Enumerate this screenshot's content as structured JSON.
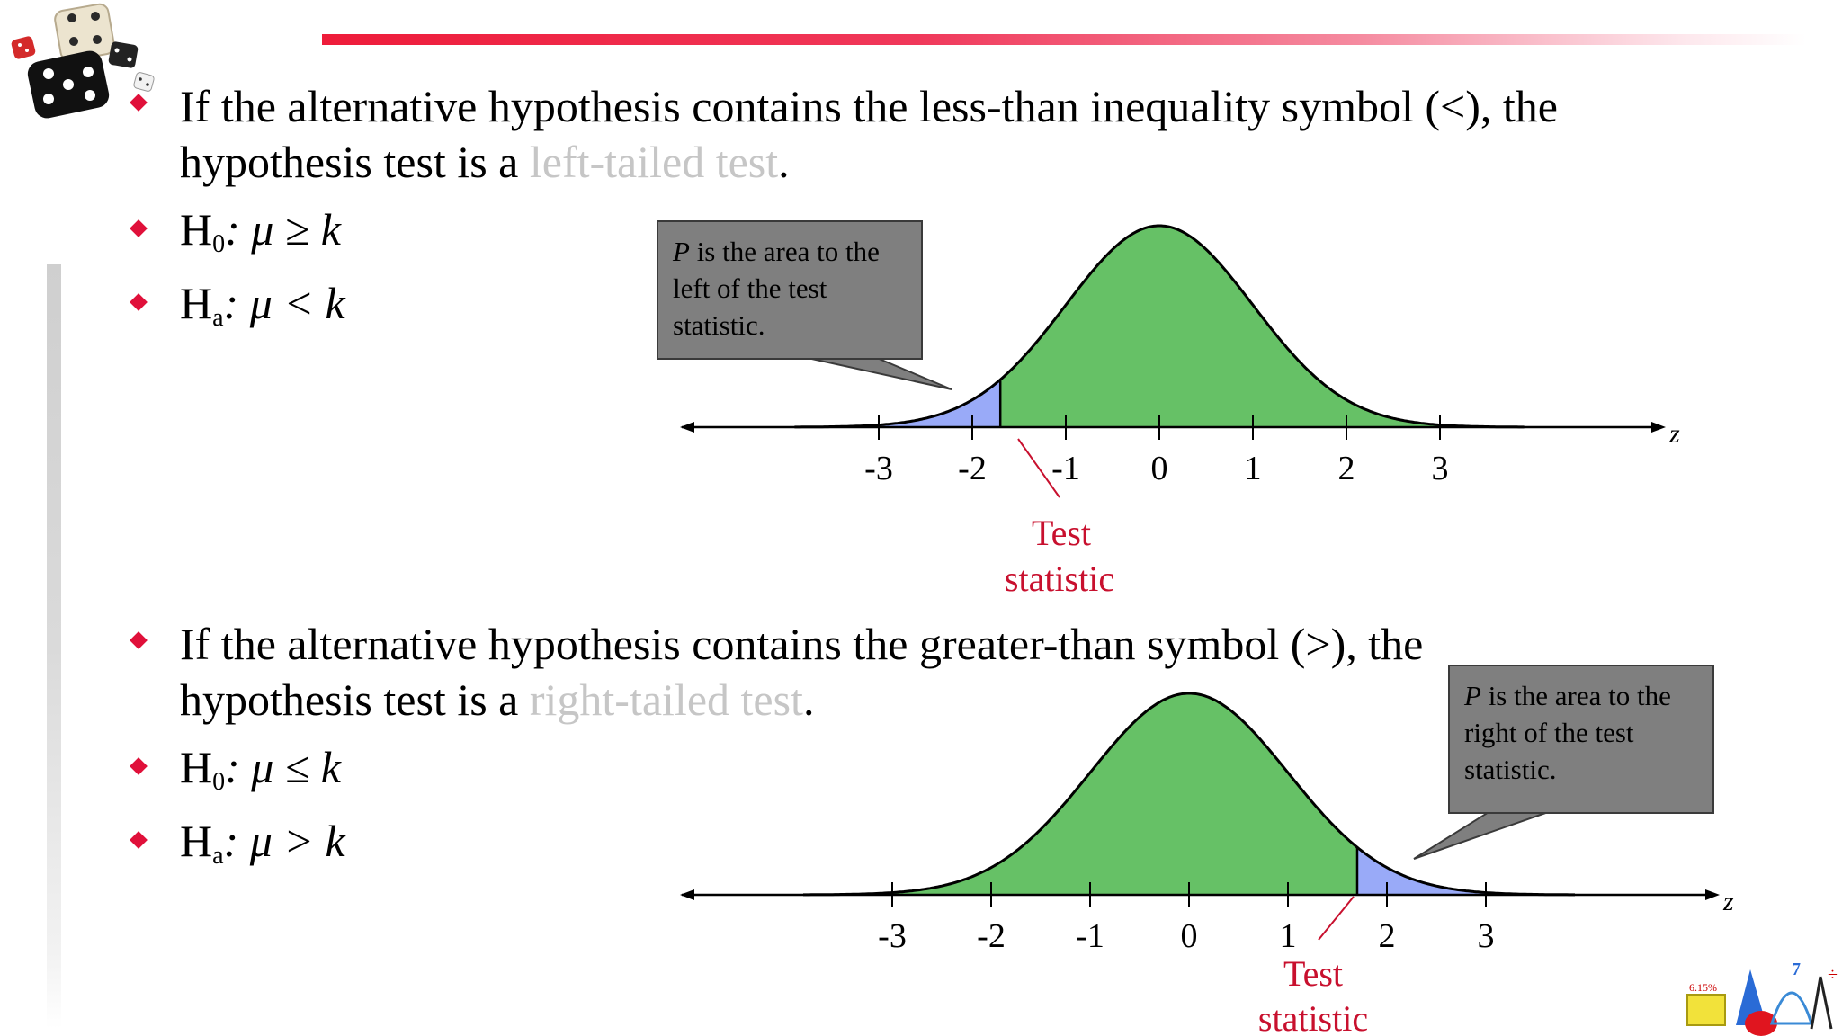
{
  "section1": {
    "line1": "If the alternative hypothesis contains the less-than inequality symbol (<), the",
    "line2_prefix": "hypothesis test is a ",
    "line2_highlight": "left-tailed test",
    "line2_suffix": ".",
    "h0": {
      "symbol": "H",
      "sub": "0",
      "expr": ": μ ≥ k"
    },
    "ha": {
      "symbol": "H",
      "sub": "a",
      "expr": ": μ < k"
    },
    "callout": {
      "p": "P",
      "text1": " is the area to the",
      "text2": "left of the test",
      "text3": "statistic."
    },
    "ticks": [
      "-3",
      "-2",
      "-1",
      "0",
      "1",
      "2",
      "3"
    ],
    "axis_var": "z",
    "test_label": [
      "Test",
      "statistic"
    ]
  },
  "section2": {
    "line1": "If the alternative hypothesis contains the greater-than symbol (>), the",
    "line2_prefix": "hypothesis test is a ",
    "line2_highlight": "right-tailed test",
    "line2_suffix": ".",
    "h0": {
      "symbol": "H",
      "sub": "0",
      "expr": ": μ ≤ k"
    },
    "ha": {
      "symbol": "H",
      "sub": "a",
      "expr": ": μ > k"
    },
    "callout": {
      "p": "P",
      "text1": " is the area to the",
      "text2": "right of the test",
      "text3": "statistic."
    },
    "ticks": [
      "-3",
      "-2",
      "-1",
      "0",
      "1",
      "2",
      "3"
    ],
    "axis_var": "z",
    "test_label": [
      "Test",
      "statistic"
    ]
  },
  "colors": {
    "accent_red": "#e0103a",
    "curve_fill": "#66c166",
    "tail_fill": "#99aaf8",
    "callout_bg": "#7f7f7f",
    "label_red": "#c8102e",
    "highlight_gray": "#c6c6c6"
  },
  "chart_data": [
    {
      "type": "area",
      "distribution": "standard normal",
      "xlabel": "z",
      "x_ticks": [
        -3,
        -2,
        -1,
        0,
        1,
        2,
        3
      ],
      "shaded_tail": "left",
      "test_statistic_z": -1.7
    },
    {
      "type": "area",
      "distribution": "standard normal",
      "xlabel": "z",
      "x_ticks": [
        -3,
        -2,
        -1,
        0,
        1,
        2,
        3
      ],
      "shaded_tail": "right",
      "test_statistic_z": 1.7
    }
  ],
  "icons": {
    "dice": "dice-icon",
    "corner": "math-shapes-icon"
  }
}
